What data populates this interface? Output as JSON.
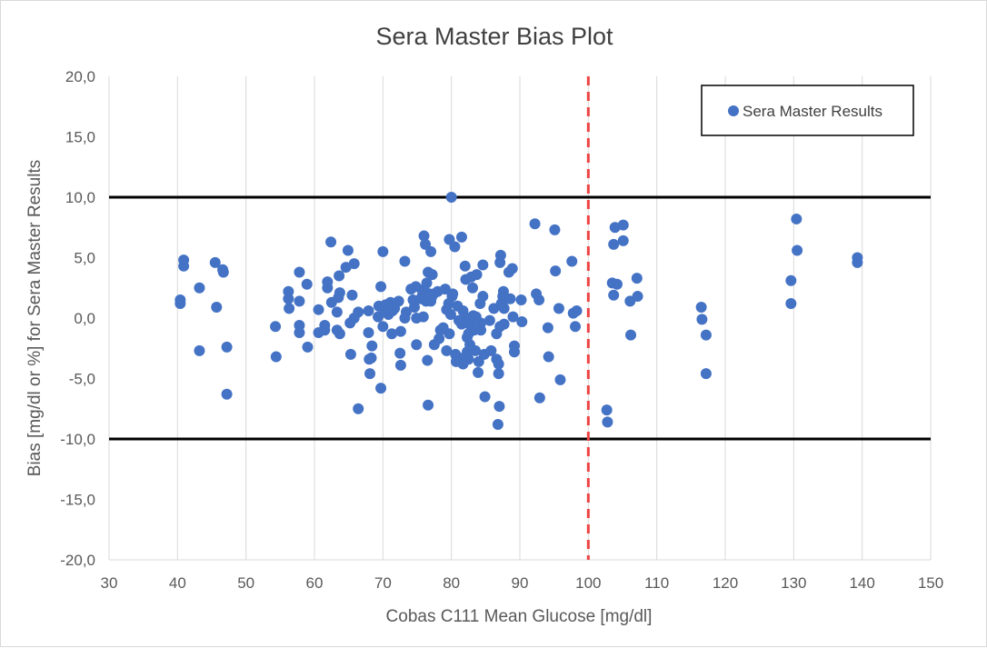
{
  "chart_data": {
    "type": "scatter",
    "title": "Sera Master Bias Plot",
    "xlabel": "Cobas C111 Mean Glucose [mg/dl]",
    "ylabel": "Bias [mg/dl or %] for Sera Master Results",
    "xlim": [
      30,
      150
    ],
    "ylim": [
      -20,
      20
    ],
    "x_ticks": [
      30,
      40,
      50,
      60,
      70,
      80,
      90,
      100,
      110,
      120,
      130,
      140,
      150
    ],
    "y_ticks": [
      20,
      15,
      10,
      5,
      0,
      -5,
      -10,
      -15,
      -20
    ],
    "x_tick_labels": [
      "30",
      "40",
      "50",
      "60",
      "70",
      "80",
      "90",
      "100",
      "110",
      "120",
      "130",
      "140",
      "150"
    ],
    "y_tick_labels": [
      "20,0",
      "15,0",
      "10,0",
      "5,0",
      "0,0",
      "-5,0",
      "-10,0",
      "-15,0",
      "-20,0"
    ],
    "grid": "vertical",
    "legend_position": "top-right",
    "reference_lines": [
      {
        "axis": "y",
        "value": 10,
        "style": "solid",
        "color": "#000000"
      },
      {
        "axis": "y",
        "value": -10,
        "style": "solid",
        "color": "#000000"
      },
      {
        "axis": "x",
        "value": 100,
        "style": "dashed",
        "color": "#ee4444"
      }
    ],
    "series": [
      {
        "name": "Sera Master Results",
        "color": "#4472c4",
        "points": [
          [
            40.4,
            1.5
          ],
          [
            40.4,
            1.2
          ],
          [
            40.9,
            4.8
          ],
          [
            40.9,
            4.3
          ],
          [
            43.2,
            2.5
          ],
          [
            43.2,
            -2.7
          ],
          [
            45.5,
            4.6
          ],
          [
            45.7,
            0.9
          ],
          [
            46.6,
            4.0
          ],
          [
            46.7,
            3.8
          ],
          [
            47.2,
            -2.4
          ],
          [
            47.2,
            -6.3
          ],
          [
            54.3,
            -0.7
          ],
          [
            54.4,
            -3.2
          ],
          [
            56.2,
            2.2
          ],
          [
            56.2,
            1.6
          ],
          [
            56.3,
            0.8
          ],
          [
            57.8,
            3.8
          ],
          [
            57.8,
            1.4
          ],
          [
            57.8,
            -0.6
          ],
          [
            57.8,
            -1.2
          ],
          [
            58.9,
            2.8
          ],
          [
            59.0,
            -2.4
          ],
          [
            60.6,
            0.7
          ],
          [
            60.6,
            -1.2
          ],
          [
            61.5,
            -0.6
          ],
          [
            61.5,
            -1.0
          ],
          [
            61.9,
            3.0
          ],
          [
            61.9,
            2.5
          ],
          [
            62.4,
            6.3
          ],
          [
            62.5,
            1.3
          ],
          [
            63.3,
            0.5
          ],
          [
            63.3,
            -1.0
          ],
          [
            63.5,
            1.7
          ],
          [
            63.6,
            3.5
          ],
          [
            63.7,
            2.1
          ],
          [
            63.7,
            -1.3
          ],
          [
            64.6,
            4.2
          ],
          [
            64.9,
            5.6
          ],
          [
            65.2,
            -0.4
          ],
          [
            65.3,
            -3.0
          ],
          [
            65.5,
            1.9
          ],
          [
            65.8,
            4.5
          ],
          [
            65.8,
            0.0
          ],
          [
            66.4,
            0.5
          ],
          [
            66.4,
            -7.5
          ],
          [
            67.9,
            0.6
          ],
          [
            67.9,
            -1.2
          ],
          [
            68.0,
            -3.4
          ],
          [
            68.1,
            -4.6
          ],
          [
            68.3,
            -3.3
          ],
          [
            68.4,
            -2.3
          ],
          [
            69.3,
            0.1
          ],
          [
            69.4,
            1.0
          ],
          [
            69.7,
            2.6
          ],
          [
            69.7,
            -5.8
          ],
          [
            70.0,
            5.5
          ],
          [
            70.0,
            -0.7
          ],
          [
            70.3,
            0.5
          ],
          [
            70.4,
            0.8
          ],
          [
            70.4,
            1.1
          ],
          [
            70.8,
            0.3
          ],
          [
            71.1,
            1.3
          ],
          [
            71.3,
            -1.3
          ],
          [
            71.4,
            0.6
          ],
          [
            71.7,
            0.8
          ],
          [
            72.3,
            1.4
          ],
          [
            72.5,
            -2.9
          ],
          [
            72.6,
            -3.9
          ],
          [
            72.6,
            -1.1
          ],
          [
            73.2,
            4.7
          ],
          [
            73.2,
            0.0
          ],
          [
            73.4,
            0.5
          ],
          [
            74.1,
            2.4
          ],
          [
            74.4,
            1.5
          ],
          [
            74.6,
            0.9
          ],
          [
            74.8,
            2.6
          ],
          [
            74.9,
            -2.2
          ],
          [
            74.9,
            0.0
          ],
          [
            75.5,
            1.6
          ],
          [
            75.8,
            2.0
          ],
          [
            75.9,
            0.1
          ],
          [
            76.0,
            6.8
          ],
          [
            76.0,
            2.4
          ],
          [
            76.2,
            6.1
          ],
          [
            76.3,
            1.4
          ],
          [
            76.4,
            2.9
          ],
          [
            76.5,
            -3.5
          ],
          [
            76.6,
            3.8
          ],
          [
            76.6,
            -7.2
          ],
          [
            76.8,
            2.0
          ],
          [
            77.0,
            1.4
          ],
          [
            77.0,
            5.5
          ],
          [
            77.1,
            1.7
          ],
          [
            77.2,
            3.6
          ],
          [
            77.4,
            2.0
          ],
          [
            77.5,
            -2.2
          ],
          [
            78.0,
            2.2
          ],
          [
            78.2,
            -1.7
          ],
          [
            78.4,
            -1.0
          ],
          [
            78.8,
            -0.8
          ],
          [
            79.1,
            2.4
          ],
          [
            79.3,
            -2.7
          ],
          [
            79.3,
            0.7
          ],
          [
            79.6,
            1.2
          ],
          [
            79.7,
            6.5
          ],
          [
            79.7,
            -1.3
          ],
          [
            79.9,
            0.3
          ],
          [
            80.0,
            10.0
          ],
          [
            80.1,
            1.8
          ],
          [
            80.2,
            2.0
          ],
          [
            80.5,
            5.9
          ],
          [
            80.6,
            -3.0
          ],
          [
            80.7,
            -3.6
          ],
          [
            80.9,
            1.0
          ],
          [
            81.1,
            -0.2
          ],
          [
            81.2,
            -3.3
          ],
          [
            81.5,
            6.7
          ],
          [
            81.5,
            -0.5
          ],
          [
            81.7,
            0.6
          ],
          [
            81.7,
            -3.8
          ],
          [
            82.0,
            4.3
          ],
          [
            82.1,
            3.2
          ],
          [
            82.3,
            -1.6
          ],
          [
            82.3,
            -2.8
          ],
          [
            82.4,
            0.0
          ],
          [
            82.5,
            -1.3
          ],
          [
            82.5,
            -3.4
          ],
          [
            82.7,
            -2.2
          ],
          [
            82.8,
            -0.6
          ],
          [
            82.9,
            3.4
          ],
          [
            83.1,
            2.5
          ],
          [
            83.2,
            0.2
          ],
          [
            83.3,
            -1.0
          ],
          [
            83.5,
            -2.7
          ],
          [
            83.6,
            0.1
          ],
          [
            83.7,
            3.6
          ],
          [
            83.9,
            -4.5
          ],
          [
            84.0,
            -3.6
          ],
          [
            84.2,
            1.2
          ],
          [
            84.3,
            -1.0
          ],
          [
            84.3,
            -0.4
          ],
          [
            84.6,
            4.4
          ],
          [
            84.6,
            1.8
          ],
          [
            84.8,
            -3.0
          ],
          [
            84.9,
            -6.5
          ],
          [
            85.6,
            -0.2
          ],
          [
            85.8,
            -2.7
          ],
          [
            86.2,
            0.8
          ],
          [
            86.6,
            -1.3
          ],
          [
            86.6,
            -3.4
          ],
          [
            86.8,
            -8.8
          ],
          [
            86.9,
            -3.8
          ],
          [
            86.9,
            -4.6
          ],
          [
            87.0,
            -7.3
          ],
          [
            87.1,
            4.6
          ],
          [
            87.1,
            -0.7
          ],
          [
            87.2,
            5.2
          ],
          [
            87.3,
            1.2
          ],
          [
            87.5,
            1.8
          ],
          [
            87.6,
            2.2
          ],
          [
            87.7,
            0.8
          ],
          [
            87.7,
            -0.5
          ],
          [
            88.1,
            1.6
          ],
          [
            88.4,
            3.8
          ],
          [
            88.6,
            1.6
          ],
          [
            88.9,
            4.1
          ],
          [
            89.0,
            0.1
          ],
          [
            89.2,
            -2.3
          ],
          [
            89.2,
            -2.8
          ],
          [
            90.2,
            1.5
          ],
          [
            90.3,
            -0.3
          ],
          [
            92.2,
            7.8
          ],
          [
            92.4,
            2.0
          ],
          [
            92.8,
            1.5
          ],
          [
            92.9,
            -6.6
          ],
          [
            94.1,
            -0.8
          ],
          [
            94.2,
            -3.2
          ],
          [
            95.1,
            7.3
          ],
          [
            95.2,
            3.9
          ],
          [
            95.7,
            0.8
          ],
          [
            95.9,
            -5.1
          ],
          [
            97.6,
            4.7
          ],
          [
            97.8,
            0.4
          ],
          [
            98.1,
            -0.7
          ],
          [
            98.3,
            0.6
          ],
          [
            102.7,
            -7.6
          ],
          [
            102.8,
            -8.6
          ],
          [
            103.5,
            2.9
          ],
          [
            103.7,
            6.1
          ],
          [
            103.7,
            1.9
          ],
          [
            103.9,
            7.5
          ],
          [
            104.2,
            2.8
          ],
          [
            105.1,
            7.7
          ],
          [
            105.1,
            6.4
          ],
          [
            106.1,
            1.4
          ],
          [
            106.2,
            -1.4
          ],
          [
            107.1,
            3.3
          ],
          [
            107.2,
            1.8
          ],
          [
            116.5,
            0.9
          ],
          [
            116.6,
            -0.1
          ],
          [
            117.2,
            -1.4
          ],
          [
            117.2,
            -4.6
          ],
          [
            129.6,
            3.1
          ],
          [
            129.6,
            1.2
          ],
          [
            130.4,
            8.2
          ],
          [
            130.5,
            5.6
          ],
          [
            139.3,
            5.0
          ],
          [
            139.3,
            4.6
          ]
        ]
      }
    ]
  }
}
